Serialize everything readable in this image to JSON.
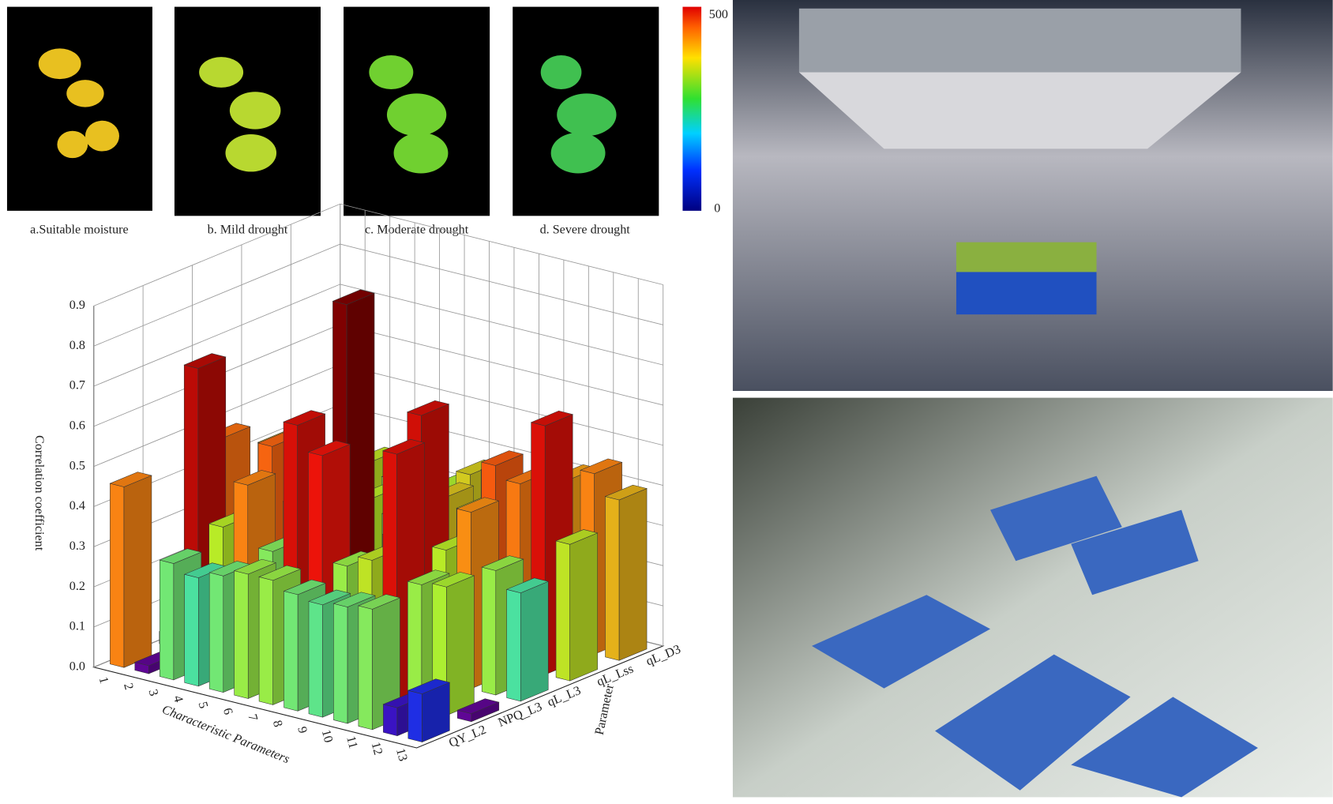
{
  "panels": [
    {
      "caption": "a.Suitable moisture"
    },
    {
      "caption": "b. Mild drought"
    },
    {
      "caption": "c. Moderate drought"
    },
    {
      "caption": "d. Severe drought"
    }
  ],
  "colorbar": {
    "max": 500,
    "min": 0
  },
  "chart_data": {
    "type": "bar3d",
    "xlabel": "Characteristic Parameters",
    "ylabel": "Parameter",
    "zlabel": "Correlation coefficient",
    "categories": [
      "1",
      "2",
      "3",
      "4",
      "5",
      "6",
      "7",
      "8",
      "9",
      "10",
      "11",
      "12",
      "13"
    ],
    "series": [
      {
        "name": "QY_L2",
        "values": [
          0.45,
          0.02,
          0.29,
          0.27,
          0.29,
          0.31,
          0.31,
          0.29,
          0.28,
          0.29,
          0.3,
          0.07,
          0.12
        ]
      },
      {
        "name": "NPQ_L3",
        "values": [
          0.03,
          0.71,
          0.33,
          0.45,
          0.3,
          0.63,
          0.57,
          0.31,
          0.34,
          0.62,
          0.31,
          0.32,
          0.02
        ]
      },
      {
        "name": "qL_L3",
        "values": [
          0.47,
          0.29,
          0.48,
          0.35,
          0.31,
          0.88,
          0.14,
          0.33,
          0.65,
          0.33,
          0.44,
          0.31,
          0.27
        ]
      },
      {
        "name": "qL_Lss",
        "values": [
          0.4,
          0.33,
          0.36,
          0.3,
          0.33,
          0.3,
          0.36,
          0.38,
          0.36,
          0.49,
          0.46,
          0.62,
          0.34
        ]
      },
      {
        "name": "qL_D3",
        "values": [
          0.3,
          0.28,
          0.34,
          0.31,
          0.35,
          0.32,
          0.37,
          0.39,
          0.35,
          0.4,
          0.42,
          0.45,
          0.4
        ]
      }
    ],
    "zlim": [
      0,
      0.9
    ],
    "zticks": [
      {
        "value": 0,
        "label": "0.0"
      },
      0.1,
      0.2,
      0.3,
      0.4,
      0.5,
      0.6,
      0.7,
      0.8,
      0.9
    ],
    "grid": true
  }
}
